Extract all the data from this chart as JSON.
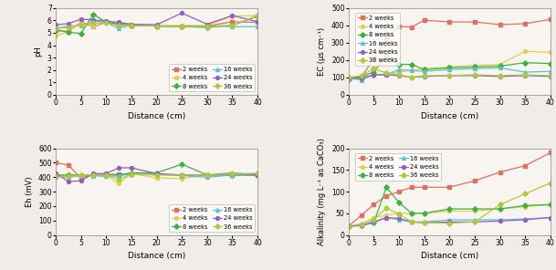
{
  "x": [
    0,
    2.5,
    5,
    7.5,
    10,
    12.5,
    15,
    20,
    25,
    30,
    35,
    40
  ],
  "pH": {
    "2weeks": [
      5.2,
      5.1,
      5.85,
      5.5,
      5.85,
      5.75,
      5.6,
      5.55,
      5.55,
      5.55,
      5.9,
      5.85
    ],
    "4weeks": [
      4.75,
      5.1,
      5.9,
      5.55,
      5.9,
      5.8,
      5.7,
      5.6,
      5.6,
      5.6,
      6.35,
      6.4
    ],
    "8weeks": [
      5.25,
      5.05,
      4.95,
      6.5,
      5.85,
      5.7,
      5.6,
      5.55,
      5.5,
      5.45,
      5.6,
      6.35
    ],
    "16weeks": [
      5.35,
      5.55,
      5.6,
      5.95,
      5.85,
      5.35,
      5.65,
      5.55,
      5.5,
      5.55,
      5.5,
      5.5
    ],
    "24weeks": [
      5.65,
      5.75,
      6.1,
      6.05,
      5.95,
      5.85,
      5.7,
      5.65,
      6.6,
      5.7,
      6.4,
      5.9
    ],
    "36weeks": [
      5.35,
      5.45,
      5.65,
      5.8,
      5.8,
      5.6,
      5.6,
      5.55,
      5.5,
      5.55,
      5.6,
      6.4
    ]
  },
  "EC": {
    "2weeks": [
      95,
      100,
      205,
      320,
      395,
      390,
      430,
      420,
      420,
      405,
      410,
      435
    ],
    "4weeks": [
      100,
      105,
      110,
      120,
      130,
      140,
      150,
      160,
      170,
      175,
      250,
      245
    ],
    "8weeks": [
      90,
      105,
      130,
      225,
      175,
      175,
      145,
      155,
      160,
      165,
      185,
      180
    ],
    "16weeks": [
      95,
      85,
      115,
      115,
      145,
      140,
      135,
      145,
      150,
      155,
      130,
      135
    ],
    "24weeks": [
      95,
      95,
      115,
      115,
      110,
      100,
      105,
      110,
      110,
      105,
      110,
      105
    ],
    "36weeks": [
      100,
      110,
      150,
      125,
      115,
      100,
      110,
      110,
      115,
      110,
      115,
      110
    ]
  },
  "Eh": {
    "2weeks": [
      500,
      485,
      395,
      420,
      420,
      420,
      420,
      420,
      415,
      415,
      415,
      415
    ],
    "4weeks": [
      400,
      420,
      415,
      415,
      415,
      355,
      425,
      395,
      390,
      415,
      415,
      430
    ],
    "8weeks": [
      415,
      415,
      415,
      415,
      415,
      415,
      430,
      430,
      490,
      415,
      415,
      415
    ],
    "16weeks": [
      400,
      400,
      410,
      410,
      405,
      410,
      420,
      420,
      410,
      400,
      415,
      415
    ],
    "24weeks": [
      430,
      370,
      375,
      425,
      425,
      465,
      465,
      425,
      415,
      415,
      430,
      415
    ],
    "36weeks": [
      405,
      405,
      415,
      415,
      415,
      385,
      420,
      415,
      415,
      415,
      425,
      425
    ]
  },
  "Alkalinity": {
    "2weeks": [
      20,
      45,
      70,
      90,
      100,
      110,
      110,
      110,
      125,
      145,
      160,
      190
    ],
    "4weeks": [
      20,
      25,
      40,
      45,
      50,
      50,
      50,
      55,
      55,
      60,
      65,
      70
    ],
    "8weeks": [
      20,
      22,
      28,
      110,
      75,
      50,
      50,
      60,
      60,
      60,
      68,
      70
    ],
    "16weeks": [
      20,
      22,
      28,
      40,
      35,
      30,
      30,
      35,
      35,
      35,
      37,
      40
    ],
    "24weeks": [
      20,
      22,
      30,
      40,
      38,
      30,
      28,
      30,
      30,
      32,
      35,
      40
    ],
    "36weeks": [
      20,
      25,
      35,
      62,
      48,
      30,
      28,
      27,
      30,
      70,
      95,
      120
    ]
  },
  "colors": {
    "2weeks": "#e07060",
    "4weeks": "#e0d050",
    "8weeks": "#40b040",
    "16weeks": "#60c0d0",
    "24weeks": "#9060c0",
    "36weeks": "#b0c840"
  },
  "markers": {
    "2weeks": "s",
    "4weeks": "o",
    "8weeks": "D",
    "16weeks": "^",
    "24weeks": "o",
    "36weeks": "D"
  },
  "weeks_order": [
    "2weeks",
    "4weeks",
    "8weeks",
    "16weeks",
    "24weeks",
    "36weeks"
  ],
  "legend_labels": {
    "2weeks": "2 weeks",
    "4weeks": "4 weeks",
    "8weeks": "8 weeks",
    "16weeks": "16 weeks",
    "24weeks": "24 weeks",
    "36weeks": "36 weeks"
  },
  "pH_ylim": [
    0,
    7
  ],
  "EC_ylim": [
    0,
    500
  ],
  "Eh_ylim": [
    0,
    600
  ],
  "Alkalinity_ylim": [
    0,
    200
  ],
  "xlim": [
    0,
    40
  ],
  "xticks": [
    0,
    5,
    10,
    15,
    20,
    25,
    30,
    35,
    40
  ],
  "pH_yticks": [
    0,
    1,
    2,
    3,
    4,
    5,
    6,
    7
  ],
  "EC_yticks": [
    0,
    100,
    200,
    300,
    400,
    500
  ],
  "Eh_yticks": [
    0,
    100,
    200,
    300,
    400,
    500,
    600
  ],
  "Alk_yticks": [
    0,
    50,
    100,
    150,
    200
  ],
  "xlabel": "Distance (cm)",
  "pH_ylabel": "pH",
  "EC_ylabel": "EC (μs cm⁻¹)",
  "Eh_ylabel": "Eh (mV)",
  "Alkalinity_ylabel": "Alkalinity (mg L⁻¹ as CaCO₃)",
  "bg_color": "#f0ece8",
  "plot_bg": "#f8f4f0"
}
